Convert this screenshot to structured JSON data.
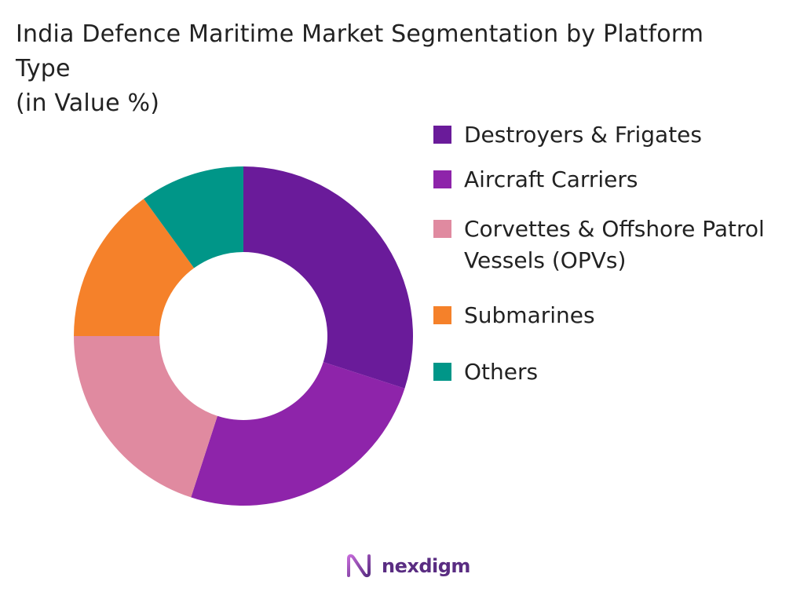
{
  "title_line1": "India Defence Maritime Market Segmentation by Platform",
  "title_line2": "Type",
  "title_line3": "(in Value %)",
  "chart_data": {
    "type": "pie",
    "donut": true,
    "legend_position": "right",
    "categories": [
      "Destroyers & Frigates",
      "Aircraft Carriers",
      "Corvettes & Offshore Patrol Vessels (OPVs)",
      "Submarines",
      "Others"
    ],
    "values": [
      30,
      25,
      20,
      15,
      10
    ],
    "colors": [
      "#6a1b9a",
      "#8e24aa",
      "#e08aa0",
      "#f5812a",
      "#009688"
    ]
  },
  "legend": [
    {
      "label": "Destroyers & Frigates",
      "color": "#6a1b9a"
    },
    {
      "label": "Aircraft Carriers",
      "color": "#8e24aa"
    },
    {
      "label": "Corvettes & Offshore Patrol Vessels (OPVs)",
      "color": "#e08aa0"
    },
    {
      "label": "Submarines",
      "color": "#f5812a"
    },
    {
      "label": "Others",
      "color": "#009688"
    }
  ],
  "logo": {
    "text": "nexdigm",
    "icon": "nexdigm-logo-icon"
  }
}
